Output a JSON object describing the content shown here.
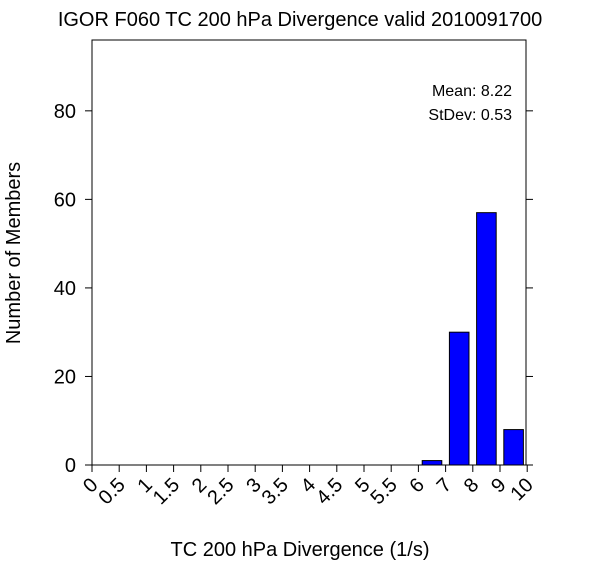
{
  "chart_data": {
    "type": "bar",
    "title": "IGOR F060 TC 200 hPa Divergence valid 2010091700",
    "xlabel": "TC 200 hPa Divergence (1/s)",
    "ylabel": "Number of Members",
    "x_tick_labels": [
      "0",
      "0.5",
      "1",
      "1.5",
      "2",
      "2.5",
      "3",
      "3.5",
      "4",
      "4.5",
      "5",
      "5.5",
      "6",
      "7",
      "8",
      "9",
      "10"
    ],
    "y_ticks": [
      0,
      20,
      40,
      60,
      80
    ],
    "ylim": [
      0,
      96
    ],
    "bars": [
      {
        "from": "6",
        "to": "7",
        "value": 1
      },
      {
        "from": "7",
        "to": "8",
        "value": 30
      },
      {
        "from": "8",
        "to": "9",
        "value": 57
      },
      {
        "from": "9",
        "to": "10",
        "value": 8
      }
    ],
    "bar_color": "#0000ff",
    "grid": false,
    "annotations": {
      "mean": "Mean: 8.22",
      "stdev": "StDev: 0.53"
    }
  }
}
